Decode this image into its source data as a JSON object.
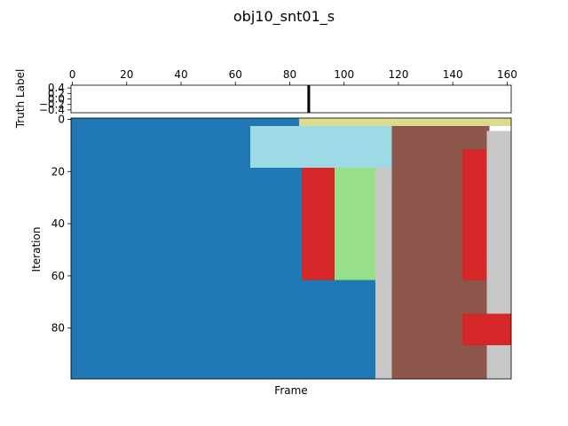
{
  "chart_data": [
    {
      "type": "heatmap",
      "title": "obj10_snt01_s",
      "ylabel": "Truth Label",
      "xlim": [
        -0.5,
        161.5
      ],
      "ylim": [
        -0.5,
        0.5
      ],
      "x_ticks": [
        0,
        20,
        40,
        60,
        80,
        100,
        120,
        140,
        160
      ],
      "y_ticks": [
        "−0.4",
        "−0.2",
        "0.0",
        "0.2",
        "0.4"
      ],
      "y_tick_values": [
        -0.4,
        -0.2,
        0.0,
        0.2,
        0.4
      ],
      "x_ticks_position": "top",
      "truth_marker_frame": 87,
      "colormap": "tab20"
    },
    {
      "type": "heatmap",
      "xlabel": "Frame",
      "ylabel": "Iteration",
      "xlim": [
        -0.5,
        161.5
      ],
      "ylim": [
        99.5,
        -0.5
      ],
      "y_ticks": [
        0,
        20,
        40,
        60,
        80
      ],
      "colormap": "tab20",
      "colors": {
        "blue": "#1f77b4",
        "light_blue": "#9edae5",
        "khaki": "#dbdb8d",
        "red": "#d62728",
        "light_green": "#98df8a",
        "light_gray": "#c7c7c7",
        "brown": "#8c564b"
      },
      "regions": [
        {
          "color": "blue",
          "frames": [
            0,
            84
          ],
          "iterations": [
            0,
            99
          ]
        },
        {
          "color": "blue",
          "frames": [
            85,
            111
          ],
          "iterations": [
            62,
            99
          ]
        },
        {
          "color": "khaki",
          "frames": [
            84,
            161
          ],
          "iterations": [
            0,
            2
          ]
        },
        {
          "color": "light_blue",
          "frames": [
            66,
            119
          ],
          "iterations": [
            3,
            18
          ]
        },
        {
          "color": "red",
          "frames": [
            85,
            97
          ],
          "iterations": [
            19,
            61
          ]
        },
        {
          "color": "light_green",
          "frames": [
            97,
            112
          ],
          "iterations": [
            19,
            61
          ]
        },
        {
          "color": "light_gray",
          "frames": [
            112,
            118
          ],
          "iterations": [
            19,
            99
          ]
        },
        {
          "color": "brown",
          "frames": [
            118,
            153
          ],
          "iterations": [
            3,
            99
          ]
        },
        {
          "color": "red",
          "frames": [
            144,
            161
          ],
          "iterations": [
            12,
            61
          ]
        },
        {
          "color": "light_gray",
          "frames": [
            153,
            161
          ],
          "iterations": [
            5,
            99
          ]
        },
        {
          "color": "red",
          "frames": [
            144,
            161
          ],
          "iterations": [
            75,
            86
          ]
        }
      ]
    }
  ]
}
